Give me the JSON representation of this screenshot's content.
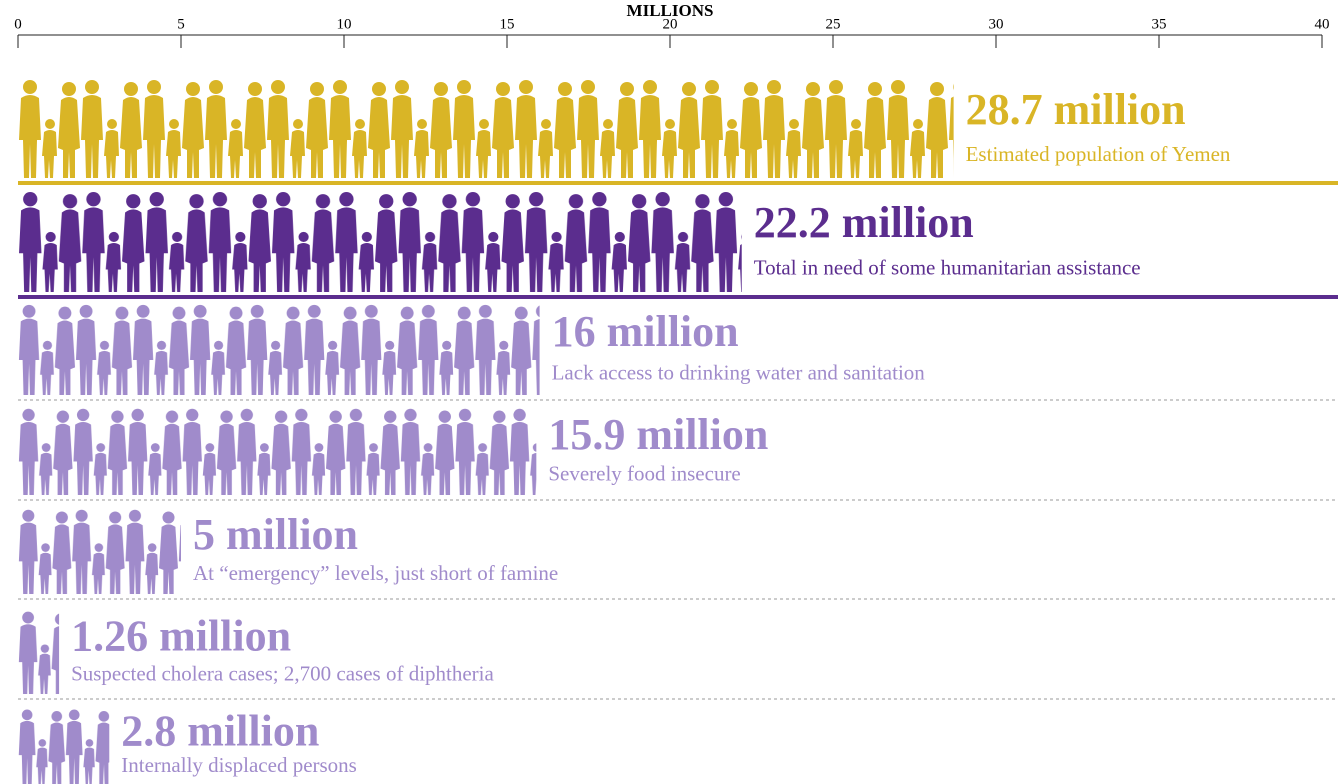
{
  "chart_data": {
    "type": "bar",
    "orientation": "horizontal",
    "xlabel": "MILLIONS",
    "xlim": [
      0,
      40
    ],
    "xticks": [
      0,
      5,
      10,
      15,
      20,
      25,
      30,
      35,
      40
    ],
    "values": [
      28.7,
      22.2,
      16,
      15.9,
      5,
      1.26,
      2.8
    ],
    "value_labels": [
      "28.7 million",
      "22.2 million",
      "16 million",
      "15.9 million",
      "5 million",
      "1.26 million",
      "2.8 million"
    ],
    "descriptions": [
      "Estimated population of Yemen",
      "Total in need of some humanitarian assistance",
      "Lack access to drinking water and sanitation",
      "Severely food insecure",
      "At “emergency” levels, just short of famine",
      "Suspected cholera cases; 2,700 cases of diphtheria",
      "Internally displaced persons"
    ],
    "colors": [
      "#d9b526",
      "#5b2d8e",
      "#a08bcb",
      "#a08bcb",
      "#a08bcb",
      "#a08bcb",
      "#a08bcb"
    ]
  }
}
